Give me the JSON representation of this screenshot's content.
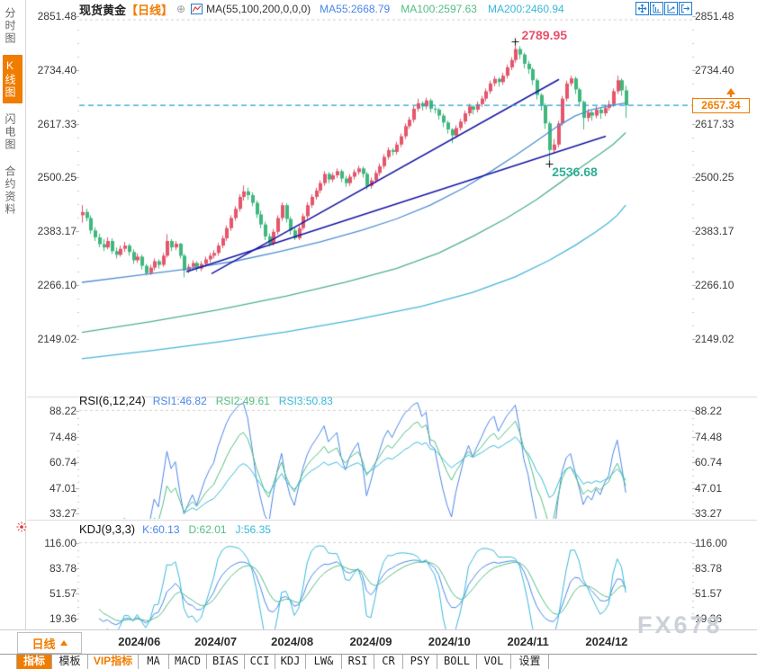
{
  "header": {
    "symbol": "现货黄金",
    "period_tag": "【日线】",
    "add_icon": "⊕",
    "ma_settings": "MA(55,100,200,0,0,0)",
    "ma55": "MA55:2668.79",
    "ma100": "MA100:2597.63",
    "ma200": "MA200:2460.94"
  },
  "sidebar": {
    "items": [
      {
        "label": "分时图",
        "name": "sidebar-item-timeline",
        "active": false
      },
      {
        "label": "K线图",
        "name": "sidebar-item-kline",
        "active": true
      },
      {
        "label": "闪电图",
        "name": "sidebar-item-lightning",
        "active": false
      },
      {
        "label": "合约资料",
        "name": "sidebar-item-contract",
        "active": false
      }
    ]
  },
  "price_axis": {
    "ticks": [
      "2851.48",
      "2734.40",
      "2617.33",
      "2500.25",
      "2383.17",
      "2266.10",
      "2149.02"
    ]
  },
  "rsi_panel": {
    "title": "RSI(6,12,24)",
    "values": [
      "RSI1:46.82",
      "RSI2:49.61",
      "RSI3:50.83"
    ],
    "ticks": [
      "88.22",
      "74.48",
      "60.74",
      "47.01",
      "33.27"
    ]
  },
  "kdj_panel": {
    "title": "KDJ(9,3,3)",
    "values": [
      "K:60.13",
      "D:62.01",
      "J:56.35"
    ],
    "ticks": [
      "116.00",
      "83.78",
      "51.57",
      "19.36"
    ]
  },
  "annotations": {
    "high_label": "2789.95",
    "low_label": "2536.68",
    "last_price_label": "2657.34"
  },
  "x_axis": {
    "period_button": "日线",
    "labels": [
      {
        "label": "2024/06",
        "idx": 13.5
      },
      {
        "label": "2024/07",
        "idx": 31.5
      },
      {
        "label": "2024/08",
        "idx": 49.5
      },
      {
        "label": "2024/09",
        "idx": 68
      },
      {
        "label": "2024/10",
        "idx": 86.5
      },
      {
        "label": "2024/11",
        "idx": 105
      },
      {
        "label": "2024/12",
        "idx": 123.5
      }
    ]
  },
  "bottom_toolbar": {
    "buttons": [
      {
        "label": "指标",
        "style": "active"
      },
      {
        "label": "模板",
        "style": ""
      },
      {
        "label": "VIP指标",
        "style": "vip"
      },
      {
        "label": "MA",
        "style": "mono"
      },
      {
        "label": "MACD",
        "style": "mono"
      },
      {
        "label": "BIAS",
        "style": "mono"
      },
      {
        "label": "CCI",
        "style": "mono"
      },
      {
        "label": "KDJ",
        "style": "mono"
      },
      {
        "label": "LW&",
        "style": "mono"
      },
      {
        "label": "RSI",
        "style": "mono"
      },
      {
        "label": "CR",
        "style": "mono"
      },
      {
        "label": "PSY",
        "style": "mono"
      },
      {
        "label": "BOLL",
        "style": "mono"
      },
      {
        "label": "VOL",
        "style": "mono"
      },
      {
        "label": "设置",
        "style": ""
      }
    ]
  },
  "watermark": "FX678",
  "colors": {
    "accent": "#f07c00",
    "up": "#e4566b",
    "down": "#3fb77d",
    "ma55": "#4e8ed0",
    "ma100": "#4fb186",
    "ma200": "#45b5d8",
    "trendline": "#1515a3",
    "last_price_dash": "#2a9fd8",
    "high_marker_text": "#e8506a",
    "low_marker_text": "#2fae94",
    "indicator_lines": [
      "#4a86e8",
      "#52be80",
      "#38b8d8"
    ]
  },
  "chart_data": {
    "type": "candlestick",
    "title": "现货黄金 日线",
    "y_axis": {
      "max": 2851.48,
      "min": 2149.02,
      "tick_step": 117.0767
    },
    "last_price": 2657.34,
    "candles": [
      [
        2418,
        2440,
        2402,
        2425
      ],
      [
        2425,
        2432,
        2405,
        2412
      ],
      [
        2412,
        2418,
        2378,
        2385
      ],
      [
        2385,
        2392,
        2362,
        2370
      ],
      [
        2370,
        2378,
        2348,
        2355
      ],
      [
        2355,
        2366,
        2340,
        2348
      ],
      [
        2348,
        2370,
        2344,
        2362
      ],
      [
        2362,
        2368,
        2334,
        2340
      ],
      [
        2340,
        2348,
        2324,
        2332
      ],
      [
        2332,
        2352,
        2328,
        2345
      ],
      [
        2345,
        2360,
        2338,
        2352
      ],
      [
        2352,
        2356,
        2330,
        2338
      ],
      [
        2338,
        2344,
        2312,
        2320
      ],
      [
        2320,
        2335,
        2314,
        2328
      ],
      [
        2328,
        2332,
        2300,
        2308
      ],
      [
        2308,
        2312,
        2287,
        2292
      ],
      [
        2292,
        2310,
        2288,
        2304
      ],
      [
        2304,
        2324,
        2298,
        2318
      ],
      [
        2318,
        2322,
        2302,
        2310
      ],
      [
        2310,
        2336,
        2306,
        2330
      ],
      [
        2330,
        2377,
        2326,
        2362
      ],
      [
        2362,
        2366,
        2340,
        2348
      ],
      [
        2348,
        2362,
        2342,
        2356
      ],
      [
        2356,
        2358,
        2324,
        2330
      ],
      [
        2330,
        2334,
        2283,
        2298
      ],
      [
        2298,
        2312,
        2292,
        2306
      ],
      [
        2306,
        2320,
        2300,
        2314
      ],
      [
        2314,
        2318,
        2295,
        2302
      ],
      [
        2302,
        2318,
        2296,
        2312
      ],
      [
        2312,
        2328,
        2306,
        2322
      ],
      [
        2322,
        2336,
        2315,
        2330
      ],
      [
        2330,
        2342,
        2324,
        2336
      ],
      [
        2336,
        2358,
        2330,
        2352
      ],
      [
        2352,
        2374,
        2346,
        2368
      ],
      [
        2368,
        2396,
        2362,
        2390
      ],
      [
        2390,
        2418,
        2384,
        2412
      ],
      [
        2412,
        2438,
        2406,
        2432
      ],
      [
        2432,
        2464,
        2426,
        2458
      ],
      [
        2458,
        2483,
        2450,
        2470
      ],
      [
        2470,
        2478,
        2452,
        2462
      ],
      [
        2462,
        2468,
        2438,
        2445
      ],
      [
        2445,
        2450,
        2412,
        2420
      ],
      [
        2420,
        2428,
        2390,
        2398
      ],
      [
        2398,
        2404,
        2364,
        2372
      ],
      [
        2372,
        2378,
        2350,
        2356
      ],
      [
        2356,
        2388,
        2352,
        2382
      ],
      [
        2382,
        2418,
        2376,
        2412
      ],
      [
        2412,
        2446,
        2406,
        2440
      ],
      [
        2440,
        2444,
        2402,
        2410
      ],
      [
        2410,
        2415,
        2376,
        2385
      ],
      [
        2385,
        2392,
        2364,
        2368
      ],
      [
        2368,
        2396,
        2364,
        2390
      ],
      [
        2390,
        2422,
        2385,
        2416
      ],
      [
        2416,
        2446,
        2410,
        2440
      ],
      [
        2440,
        2464,
        2434,
        2458
      ],
      [
        2458,
        2478,
        2452,
        2472
      ],
      [
        2472,
        2494,
        2466,
        2488
      ],
      [
        2488,
        2514,
        2482,
        2508
      ],
      [
        2508,
        2512,
        2488,
        2496
      ],
      [
        2496,
        2511,
        2490,
        2505
      ],
      [
        2505,
        2520,
        2499,
        2514
      ],
      [
        2514,
        2518,
        2490,
        2498
      ],
      [
        2498,
        2504,
        2480,
        2488
      ],
      [
        2488,
        2508,
        2482,
        2502
      ],
      [
        2502,
        2518,
        2496,
        2512
      ],
      [
        2512,
        2526,
        2506,
        2520
      ],
      [
        2520,
        2524,
        2500,
        2508
      ],
      [
        2508,
        2512,
        2474,
        2482
      ],
      [
        2482,
        2500,
        2476,
        2494
      ],
      [
        2494,
        2516,
        2488,
        2510
      ],
      [
        2510,
        2531,
        2504,
        2525
      ],
      [
        2525,
        2551,
        2519,
        2545
      ],
      [
        2545,
        2566,
        2539,
        2560
      ],
      [
        2560,
        2564,
        2548,
        2556
      ],
      [
        2556,
        2578,
        2550,
        2572
      ],
      [
        2572,
        2596,
        2566,
        2590
      ],
      [
        2590,
        2618,
        2584,
        2612
      ],
      [
        2612,
        2632,
        2606,
        2626
      ],
      [
        2626,
        2656,
        2620,
        2650
      ],
      [
        2650,
        2672,
        2644,
        2662
      ],
      [
        2662,
        2666,
        2646,
        2655
      ],
      [
        2655,
        2674,
        2649,
        2668
      ],
      [
        2668,
        2672,
        2642,
        2650
      ],
      [
        2650,
        2655,
        2640,
        2648
      ],
      [
        2648,
        2652,
        2626,
        2635
      ],
      [
        2635,
        2640,
        2610,
        2620
      ],
      [
        2620,
        2624,
        2596,
        2605
      ],
      [
        2605,
        2608,
        2575,
        2592
      ],
      [
        2592,
        2614,
        2586,
        2608
      ],
      [
        2608,
        2628,
        2602,
        2622
      ],
      [
        2622,
        2646,
        2616,
        2640
      ],
      [
        2640,
        2661,
        2634,
        2655
      ],
      [
        2655,
        2658,
        2638,
        2648
      ],
      [
        2648,
        2666,
        2642,
        2660
      ],
      [
        2660,
        2678,
        2654,
        2672
      ],
      [
        2672,
        2694,
        2666,
        2688
      ],
      [
        2688,
        2711,
        2682,
        2705
      ],
      [
        2705,
        2721,
        2699,
        2715
      ],
      [
        2715,
        2718,
        2698,
        2708
      ],
      [
        2708,
        2728,
        2702,
        2722
      ],
      [
        2722,
        2746,
        2716,
        2740
      ],
      [
        2740,
        2762,
        2734,
        2756
      ],
      [
        2756,
        2789.95,
        2750,
        2780
      ],
      [
        2780,
        2786,
        2758,
        2768
      ],
      [
        2768,
        2772,
        2738,
        2748
      ],
      [
        2748,
        2754,
        2726,
        2736
      ],
      [
        2736,
        2740,
        2702,
        2712
      ],
      [
        2712,
        2716,
        2670,
        2680
      ],
      [
        2680,
        2684,
        2646,
        2658
      ],
      [
        2658,
        2662,
        2606,
        2618
      ],
      [
        2618,
        2622,
        2536.68,
        2560
      ],
      [
        2560,
        2584,
        2552,
        2572
      ],
      [
        2572,
        2624,
        2566,
        2618
      ],
      [
        2618,
        2678,
        2612,
        2672
      ],
      [
        2672,
        2711,
        2666,
        2705
      ],
      [
        2705,
        2722,
        2699,
        2716
      ],
      [
        2716,
        2720,
        2682,
        2692
      ],
      [
        2692,
        2696,
        2655,
        2665
      ],
      [
        2665,
        2668,
        2605,
        2630
      ],
      [
        2630,
        2650,
        2622,
        2642
      ],
      [
        2642,
        2646,
        2624,
        2635
      ],
      [
        2635,
        2656,
        2629,
        2648
      ],
      [
        2648,
        2652,
        2628,
        2640
      ],
      [
        2640,
        2658,
        2634,
        2652
      ],
      [
        2652,
        2668,
        2646,
        2660
      ],
      [
        2660,
        2694,
        2654,
        2688
      ],
      [
        2688,
        2722,
        2682,
        2712
      ],
      [
        2712,
        2716,
        2678,
        2690
      ],
      [
        2690,
        2700,
        2630,
        2657.34
      ]
    ],
    "ma_overlays": [
      {
        "name": "MA55",
        "value": 2668.79,
        "points": [
          [
            0,
            2272
          ],
          [
            12,
            2286
          ],
          [
            24,
            2300
          ],
          [
            36,
            2318
          ],
          [
            46,
            2338
          ],
          [
            56,
            2360
          ],
          [
            66,
            2386
          ],
          [
            74,
            2410
          ],
          [
            82,
            2440
          ],
          [
            90,
            2478
          ],
          [
            96,
            2512
          ],
          [
            102,
            2548
          ],
          [
            107,
            2580
          ],
          [
            112,
            2612
          ],
          [
            116,
            2634
          ],
          [
            120,
            2648
          ],
          [
            124,
            2656
          ],
          [
            128,
            2663
          ]
        ]
      },
      {
        "name": "MA100",
        "value": 2597.63,
        "points": [
          [
            0,
            2163
          ],
          [
            16,
            2186
          ],
          [
            32,
            2212
          ],
          [
            48,
            2242
          ],
          [
            62,
            2272
          ],
          [
            74,
            2302
          ],
          [
            84,
            2336
          ],
          [
            92,
            2372
          ],
          [
            100,
            2412
          ],
          [
            107,
            2452
          ],
          [
            113,
            2492
          ],
          [
            118,
            2526
          ],
          [
            122,
            2552
          ],
          [
            125,
            2572
          ],
          [
            128,
            2598
          ]
        ]
      },
      {
        "name": "MA200",
        "value": 2460.94,
        "points": [
          [
            0,
            2106
          ],
          [
            16,
            2123
          ],
          [
            32,
            2142
          ],
          [
            48,
            2164
          ],
          [
            64,
            2190
          ],
          [
            80,
            2220
          ],
          [
            92,
            2250
          ],
          [
            102,
            2284
          ],
          [
            110,
            2320
          ],
          [
            116,
            2352
          ],
          [
            121,
            2382
          ],
          [
            124,
            2402
          ],
          [
            126,
            2418
          ],
          [
            128,
            2440
          ]
        ]
      }
    ],
    "trendlines": [
      {
        "from": [
          30.5,
          2291
        ],
        "to": [
          112.3,
          2714
        ]
      },
      {
        "from": [
          24.6,
          2295
        ],
        "to": [
          123.3,
          2590
        ]
      }
    ],
    "markers": {
      "high": {
        "idx": 102,
        "price": 2789.95
      },
      "low": {
        "idx": 110,
        "price": 2536.68
      }
    },
    "indicators": {
      "rsi": {
        "periods": [
          6,
          12,
          24
        ],
        "axis_ticks": [
          88.22,
          74.48,
          60.74,
          47.01,
          33.27
        ],
        "current": [
          46.82,
          49.61,
          50.83
        ]
      },
      "kdj": {
        "params": [
          9,
          3,
          3
        ],
        "axis_ticks": [
          116.0,
          83.78,
          51.57,
          19.36
        ],
        "current": {
          "k": 60.13,
          "d": 62.01,
          "j": 56.35
        }
      }
    }
  }
}
